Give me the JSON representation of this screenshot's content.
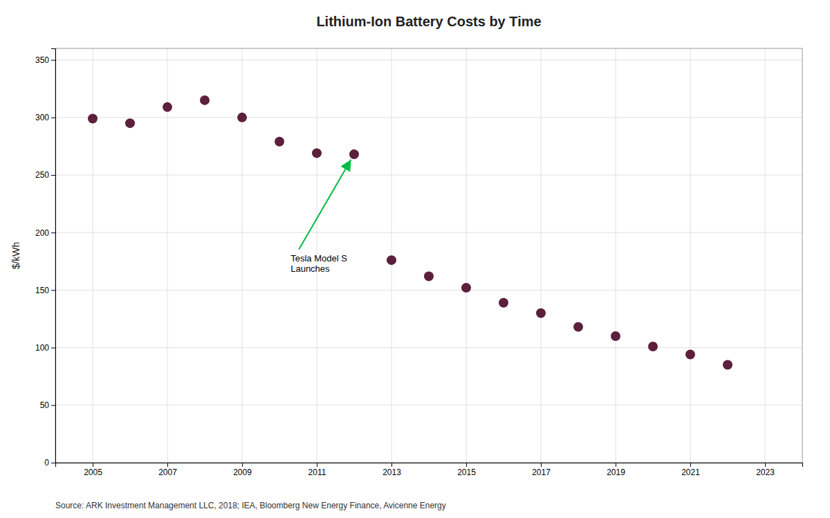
{
  "chart_data": {
    "type": "scatter",
    "title": "Lithium-Ion Battery Costs by Time",
    "ylabel": "$/kWh",
    "source": "Source: ARK Investment Management LLC, 2018; IEA, Bloomberg New Energy Finance, Avicenne Energy",
    "x": [
      2005,
      2006,
      2007,
      2008,
      2009,
      2010,
      2011,
      2012,
      2013,
      2014,
      2015,
      2016,
      2017,
      2018,
      2019,
      2020,
      2021,
      2022
    ],
    "values": [
      299,
      295,
      309,
      315,
      300,
      279,
      269,
      268,
      176,
      162,
      152,
      139,
      130,
      118,
      110,
      101,
      94,
      85
    ],
    "color": "#5c1f3c",
    "xlim": [
      2004,
      2024
    ],
    "ylim": [
      0,
      360
    ],
    "xticks": [
      2005,
      2007,
      2009,
      2011,
      2013,
      2015,
      2017,
      2019,
      2021,
      2023
    ],
    "yticks": [
      0,
      50,
      100,
      150,
      200,
      250,
      300,
      350
    ],
    "grid": true,
    "annotations": [
      {
        "text": "Tesla Model S\nLaunches",
        "x": 2012,
        "y": 268,
        "text_x": 2010.3,
        "text_y": 183,
        "color": "#00bb44"
      }
    ]
  }
}
